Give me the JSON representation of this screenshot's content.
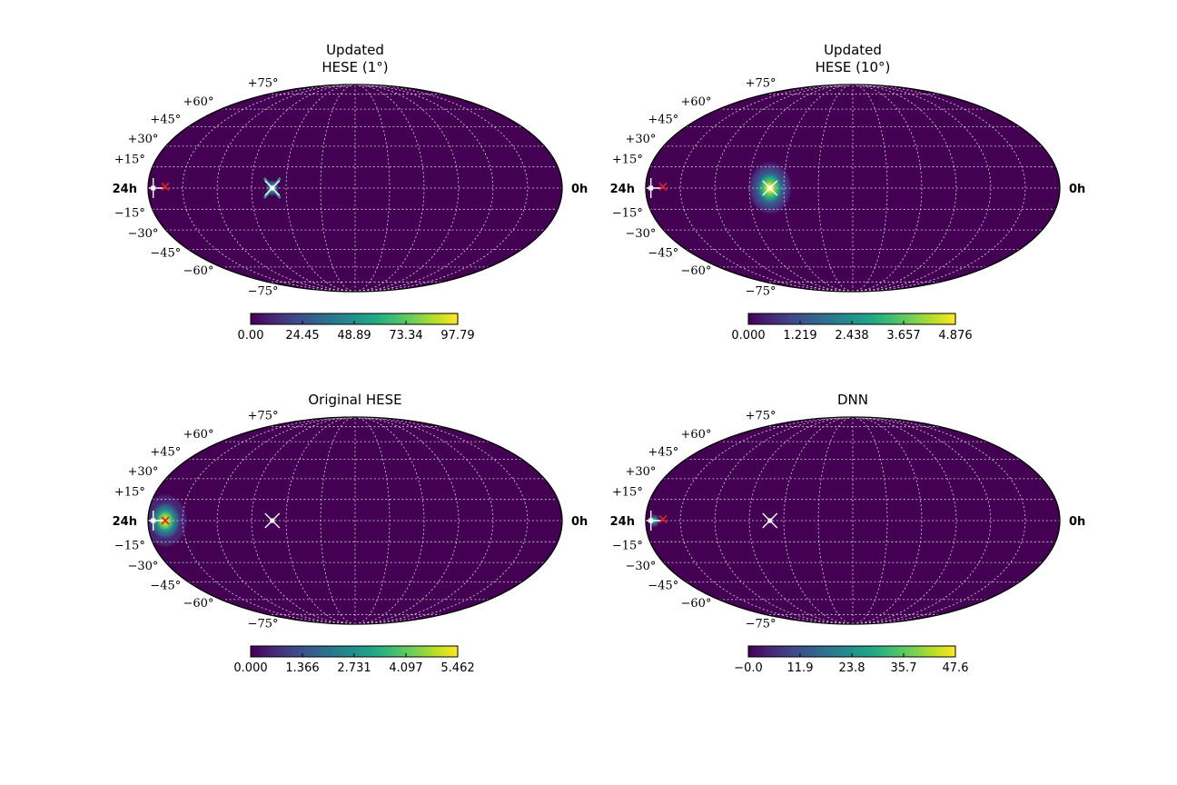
{
  "colors": {
    "background_map": "#440154",
    "grid": "#d8d8d8",
    "marker_white": "#ffffff",
    "marker_red": "#e8201c",
    "colormap": "viridis"
  },
  "ra_labels": {
    "left": "24h",
    "right": "0h"
  },
  "dec_ticks": [
    "+75°",
    "+60°",
    "+45°",
    "+30°",
    "+15°",
    "−15°",
    "−30°",
    "−45°",
    "−60°",
    "−75°"
  ],
  "chart_data": [
    {
      "type": "heatmap",
      "projection": "mollweide",
      "title_lines": [
        "Updated",
        "HESE (1°)"
      ],
      "colorbar": {
        "min": 0,
        "max": 97.79,
        "ticks": [
          "0.00",
          "24.45",
          "48.89",
          "73.34",
          "97.79"
        ]
      },
      "hotspot": {
        "ra_h": 16.8,
        "dec": 0,
        "spread_deg": 3,
        "peak": 1.0,
        "shape": "x-star"
      },
      "markers": [
        {
          "kind": "white-cross",
          "ra_h": 23.7,
          "dec": 0
        },
        {
          "kind": "red-x",
          "ra_h": 23.0,
          "dec": 1
        },
        {
          "kind": "white-x",
          "ra_h": 16.8,
          "dec": 0
        }
      ],
      "grid": true
    },
    {
      "type": "heatmap",
      "projection": "mollweide",
      "title_lines": [
        "Updated",
        "HESE (10°)"
      ],
      "colorbar": {
        "min": 0,
        "max": 4.876,
        "ticks": [
          "0.000",
          "1.219",
          "2.438",
          "3.657",
          "4.876"
        ]
      },
      "hotspot": {
        "ra_h": 16.8,
        "dec": 0,
        "spread_deg": 10,
        "peak": 1.0,
        "shape": "blob"
      },
      "markers": [
        {
          "kind": "white-cross",
          "ra_h": 23.7,
          "dec": 0
        },
        {
          "kind": "red-x",
          "ra_h": 23.0,
          "dec": 1
        },
        {
          "kind": "white-x",
          "ra_h": 16.8,
          "dec": 0
        }
      ],
      "grid": true
    },
    {
      "type": "heatmap",
      "projection": "mollweide",
      "title_lines": [
        "Original HESE"
      ],
      "colorbar": {
        "min": 0,
        "max": 5.462,
        "ticks": [
          "0.000",
          "1.366",
          "2.731",
          "4.097",
          "5.462"
        ]
      },
      "hotspot": {
        "ra_h": 23.0,
        "dec": 0,
        "spread_deg": 10,
        "peak": 0.9,
        "shape": "blob"
      },
      "markers": [
        {
          "kind": "white-cross",
          "ra_h": 23.7,
          "dec": 0
        },
        {
          "kind": "red-x",
          "ra_h": 23.0,
          "dec": 0
        },
        {
          "kind": "white-x",
          "ra_h": 16.8,
          "dec": 0
        }
      ],
      "grid": true
    },
    {
      "type": "heatmap",
      "projection": "mollweide",
      "title_lines": [
        "DNN"
      ],
      "colorbar": {
        "min": 0,
        "max": 47.6,
        "ticks": [
          "−0.0",
          "11.9",
          "23.8",
          "35.7",
          "47.6"
        ]
      },
      "hotspot": {
        "ra_h": 23.5,
        "dec": 0,
        "spread_deg": 3,
        "peak": 0.75,
        "shape": "blob"
      },
      "markers": [
        {
          "kind": "white-cross",
          "ra_h": 23.7,
          "dec": 0
        },
        {
          "kind": "red-x",
          "ra_h": 23.0,
          "dec": 1
        },
        {
          "kind": "white-x",
          "ra_h": 16.8,
          "dec": 0
        }
      ],
      "grid": true
    }
  ]
}
